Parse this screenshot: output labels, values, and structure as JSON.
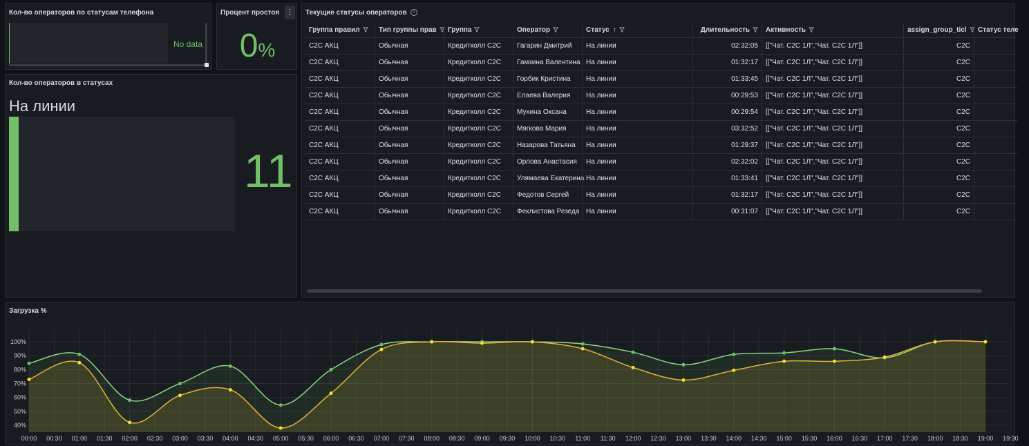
{
  "panel_phone": {
    "title": "Кол-во операторов по статусам телефона",
    "no_data": "No data"
  },
  "panel_idle": {
    "title": "Процент простоя",
    "value": "0",
    "unit": "%",
    "menu_icon": "kebab-icon"
  },
  "panel_status_count": {
    "title": "Кол-во операторов в статусах",
    "status_name": "На линии",
    "count": "11"
  },
  "panel_table": {
    "title": "Текущие статусы операторов",
    "columns": [
      "Группа правил",
      "Тип группы прав",
      "Группа",
      "Оператор",
      "Статус",
      "Длительность",
      "Активность",
      "assign_group_ticl",
      "Статус теле"
    ],
    "sort_indicator": "↑",
    "rows": [
      [
        "C2C АКЦ",
        "Обычная",
        "Кредитколл C2C",
        "Гагарин Дмитрий",
        "На линии",
        "02:32:05",
        "[[\"Чат. C2C 1Л\",\"Чат. C2C 1Л\"]]",
        "C2C"
      ],
      [
        "C2C АКЦ",
        "Обычная",
        "Кредитколл C2C",
        "Гамзина Валентина",
        "На линии",
        "01:32:17",
        "[[\"Чат. C2C 1Л\",\"Чат. C2C 1Л\"]]",
        "C2C"
      ],
      [
        "C2C АКЦ",
        "Обычная",
        "Кредитколл C2C",
        "Горбик Кристина",
        "На линии",
        "01:33:45",
        "[[\"Чат. C2C 1Л\",\"Чат. C2C 1Л\"]]",
        "C2C"
      ],
      [
        "C2C АКЦ",
        "Обычная",
        "Кредитколл C2C",
        "Елаева Валерия",
        "На линии",
        "00:29:53",
        "[[\"Чат. C2C 1Л\",\"Чат. C2C 1Л\"]]",
        "C2C"
      ],
      [
        "C2C АКЦ",
        "Обычная",
        "Кредитколл C2C",
        "Мухина Оксана",
        "На линии",
        "00:29:54",
        "[[\"Чат. C2C 1Л\",\"Чат. C2C 1Л\"]]",
        "C2C"
      ],
      [
        "C2C АКЦ",
        "Обычная",
        "Кредитколл C2C",
        "Мягкова Мария",
        "На линии",
        "03:32:52",
        "[[\"Чат. C2C 1Л\",\"Чат. C2C 1Л\"]]",
        "C2C"
      ],
      [
        "C2C АКЦ",
        "Обычная",
        "Кредитколл C2C",
        "Назарова Татьяна",
        "На линии",
        "01:29:37",
        "[[\"Чат. C2C 1Л\",\"Чат. C2C 1Л\"]]",
        "C2C"
      ],
      [
        "C2C АКЦ",
        "Обычная",
        "Кредитколл C2C",
        "Орлова Анастасия",
        "На линии",
        "02:32:02",
        "[[\"Чат. C2C 1Л\",\"Чат. C2C 1Л\"]]",
        "C2C"
      ],
      [
        "C2C АКЦ",
        "Обычная",
        "Кредитколл C2C",
        "Улямаева Екатерина",
        "На линии",
        "01:33:41",
        "[[\"Чат. C2C 1Л\",\"Чат. C2C 1Л\"]]",
        "C2C"
      ],
      [
        "C2C АКЦ",
        "Обычная",
        "Кредитколл C2C",
        "Федотов Сергей",
        "На линии",
        "01:32:17",
        "[[\"Чат. C2C 1Л\",\"Чат. C2C 1Л\"]]",
        "C2C"
      ],
      [
        "C2C АКЦ",
        "Обычная",
        "Кредитколл C2C",
        "Феклистова Резеда",
        "На линии",
        "00:31:07",
        "[[\"Чат. C2C 1Л\",\"Чат. C2C 1Л\"]]",
        "C2C"
      ]
    ]
  },
  "panel_load": {
    "title": "Загрузка %"
  },
  "colors": {
    "green": "#73bf69",
    "yellow": "#fade2a",
    "orange": "#e0a030",
    "panel": "#181b1f",
    "border": "#2c3038"
  },
  "chart_data": {
    "type": "line",
    "title": "Загрузка %",
    "x": [
      "00:00",
      "00:30",
      "01:00",
      "01:30",
      "02:00",
      "02:30",
      "03:00",
      "03:30",
      "04:00",
      "04:30",
      "05:00",
      "05:30",
      "06:00",
      "06:30",
      "07:00",
      "07:30",
      "08:00",
      "08:30",
      "09:00",
      "09:30",
      "10:00",
      "10:30",
      "11:00",
      "11:30",
      "12:00",
      "12:30",
      "13:00",
      "13:30",
      "14:00",
      "14:30",
      "15:00",
      "15:30",
      "16:00",
      "16:30",
      "17:00",
      "17:30",
      "18:00",
      "18:30",
      "19:00",
      "19:30"
    ],
    "y_ticks": [
      "40%",
      "50%",
      "60%",
      "70%",
      "80%",
      "90%",
      "100%"
    ],
    "ylim": [
      35,
      105
    ],
    "series": [
      {
        "color": "#73bf69",
        "points": [
          [
            "00:00",
            84.5
          ],
          [
            "01:00",
            91
          ],
          [
            "02:00",
            58
          ],
          [
            "03:00",
            70
          ],
          [
            "04:00",
            82.5
          ],
          [
            "05:00",
            54.5
          ],
          [
            "06:00",
            80
          ],
          [
            "07:00",
            98
          ],
          [
            "08:00",
            100
          ],
          [
            "09:00",
            100
          ],
          [
            "10:00",
            100
          ],
          [
            "11:00",
            98.5
          ],
          [
            "12:00",
            92.5
          ],
          [
            "13:00",
            83.5
          ],
          [
            "14:00",
            91
          ],
          [
            "15:00",
            92
          ],
          [
            "16:00",
            95
          ],
          [
            "17:00",
            88.5
          ],
          [
            "18:00",
            100
          ],
          [
            "19:00",
            100
          ]
        ]
      },
      {
        "color": "#fade2a",
        "points": [
          [
            "00:00",
            73
          ],
          [
            "01:00",
            85
          ],
          [
            "02:00",
            42
          ],
          [
            "03:00",
            61.5
          ],
          [
            "04:00",
            65.5
          ],
          [
            "05:00",
            38
          ],
          [
            "06:00",
            63
          ],
          [
            "07:00",
            94.5
          ],
          [
            "08:00",
            100
          ],
          [
            "09:00",
            99
          ],
          [
            "10:00",
            100
          ],
          [
            "11:00",
            95
          ],
          [
            "12:00",
            81.5
          ],
          [
            "13:00",
            72.5
          ],
          [
            "14:00",
            79.5
          ],
          [
            "15:00",
            86
          ],
          [
            "16:00",
            86
          ],
          [
            "17:00",
            89
          ],
          [
            "18:00",
            100
          ],
          [
            "19:00",
            100
          ]
        ]
      }
    ],
    "grid": true
  }
}
